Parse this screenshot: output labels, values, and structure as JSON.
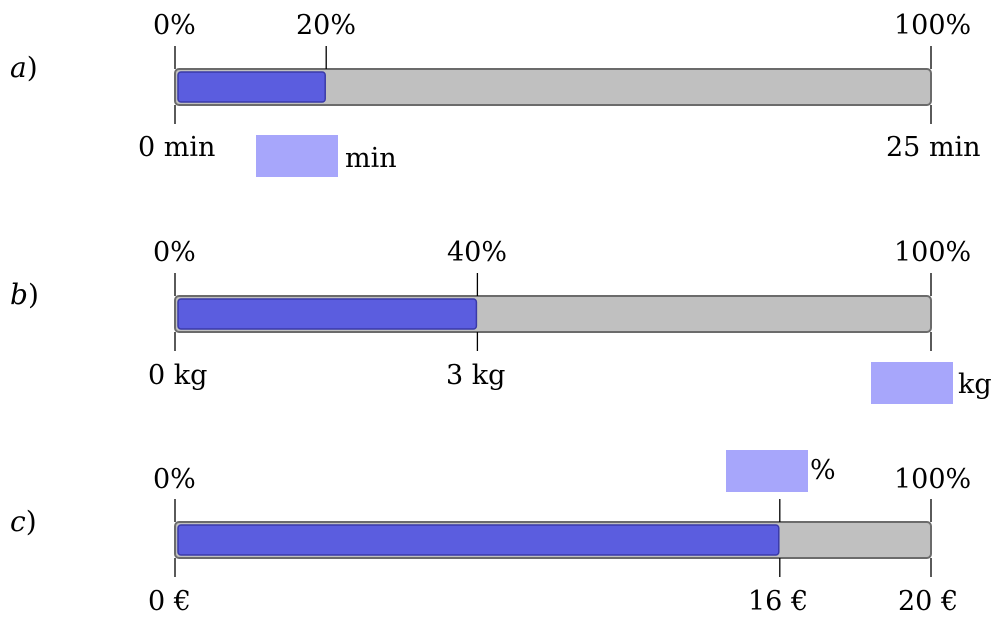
{
  "problems": [
    {
      "label": "a",
      "percent_labels": [
        "0%",
        "20%",
        "100%"
      ],
      "value_labels": [
        "0 min",
        "25 min"
      ],
      "answer_unit": "min",
      "fill_fraction": 0.2
    },
    {
      "label": "b",
      "percent_labels": [
        "0%",
        "40%",
        "100%"
      ],
      "value_labels": [
        "0 kg",
        "3 kg"
      ],
      "answer_unit": "kg",
      "fill_fraction": 0.4
    },
    {
      "label": "c",
      "percent_labels": [
        "0%",
        "100%"
      ],
      "answer_unit": "%",
      "value_labels": [
        "0 €",
        "16 €",
        "20 €"
      ],
      "fill_fraction": 0.8
    }
  ],
  "colors": {
    "bar_track": "#c0c0c0",
    "bar_fill": "#5b5ddf",
    "answer_box": "#a7a6fb",
    "outline": "#6b6b6b"
  }
}
